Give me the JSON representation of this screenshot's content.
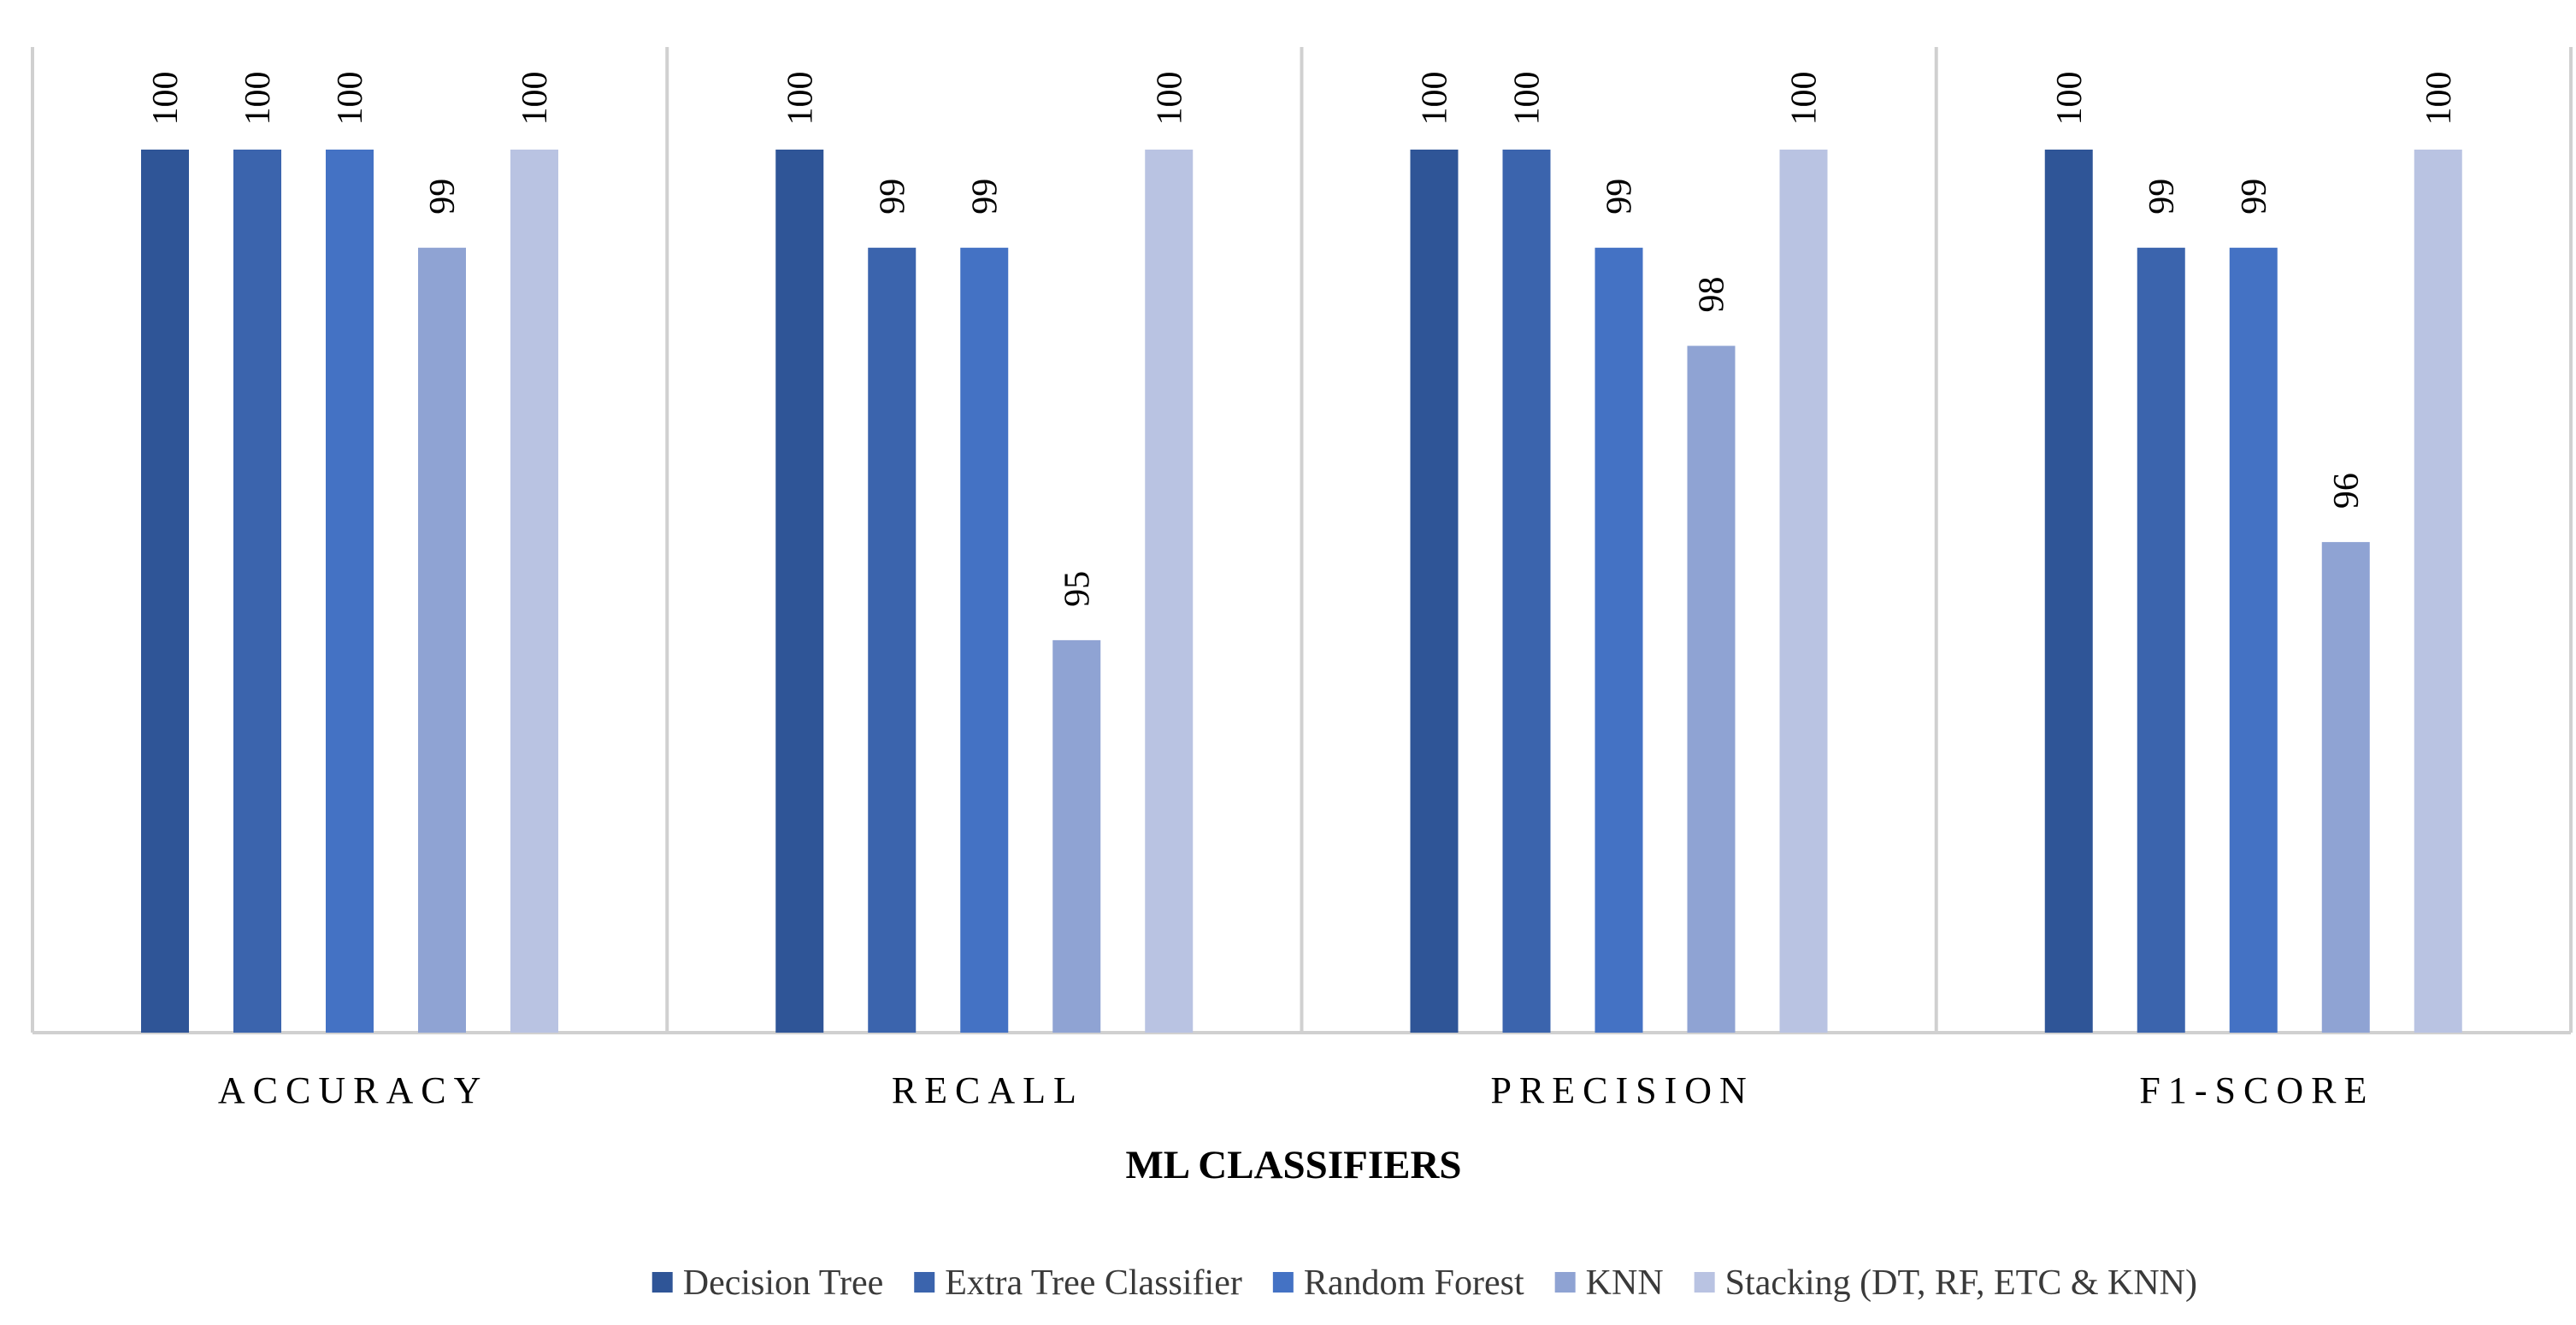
{
  "chart_data": {
    "type": "bar",
    "categories": [
      "ACCURACY",
      "RECALL",
      "PRECISION",
      "F1-SCORE"
    ],
    "series": [
      {
        "name": "Decision Tree",
        "color": "#2f5597",
        "values": [
          100,
          100,
          100,
          100
        ]
      },
      {
        "name": "Extra Tree Classifier",
        "color": "#3b64ad",
        "values": [
          100,
          99,
          100,
          99
        ]
      },
      {
        "name": "Random Forest",
        "color": "#4472c4",
        "values": [
          100,
          99,
          99,
          99
        ]
      },
      {
        "name": "KNN",
        "color": "#8fa3d3",
        "values": [
          99,
          95,
          98,
          96
        ]
      },
      {
        "name": "Stacking (DT, RF, ETC & KNN)",
        "color": "#b9c3e2",
        "values": [
          100,
          100,
          100,
          100
        ]
      }
    ],
    "xlabel": "ML CLASSIFIERS",
    "ylabel": "",
    "ylim": [
      91,
      100
    ],
    "grid": false,
    "legend_position": "bottom"
  }
}
